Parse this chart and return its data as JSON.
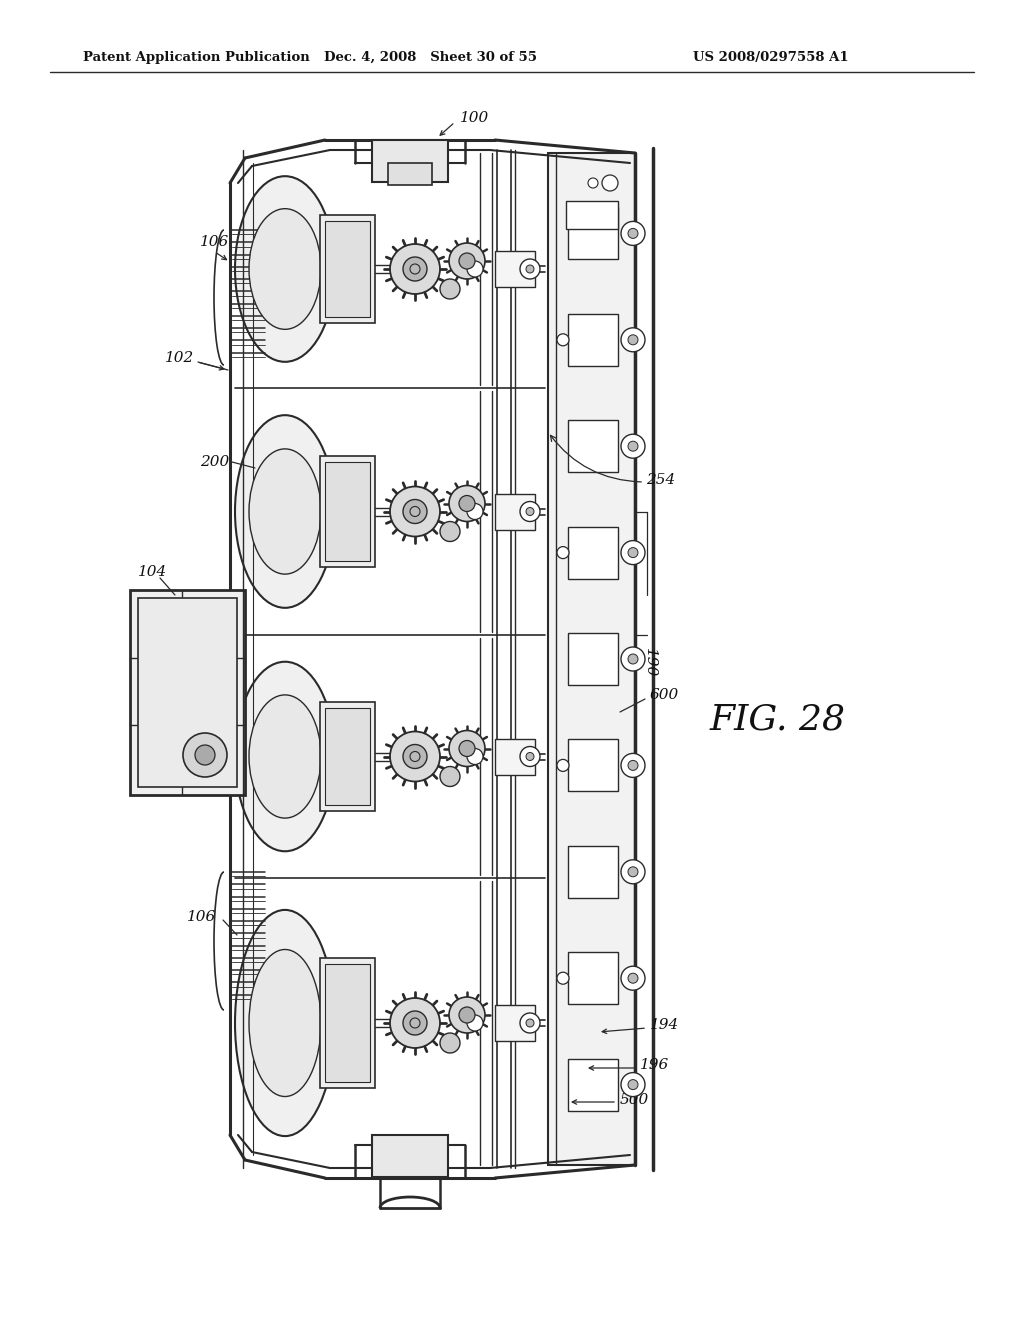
{
  "background_color": "#ffffff",
  "header_left": "Patent Application Publication",
  "header_center": "Dec. 4, 2008   Sheet 30 of 55",
  "header_right": "US 2008/0297558 A1",
  "fig_label": "FIG. 28",
  "line_color": "#2a2a2a",
  "text_color": "#111111",
  "gray_fill": "#d8d8d8",
  "light_gray": "#eeeeee",
  "mid_gray": "#bbbbbb"
}
